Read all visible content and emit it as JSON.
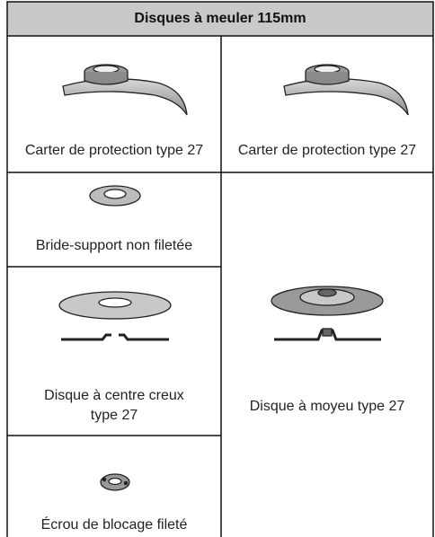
{
  "table": {
    "title": "Disques à meuler 115mm",
    "cells": [
      "Carter de protection type 27",
      "Carter de protection type 27",
      "Bride-support non filetée",
      "Disque à centre creux type 27",
      "Écrou de blocage fileté",
      "Disque à moyeu type 27"
    ]
  }
}
